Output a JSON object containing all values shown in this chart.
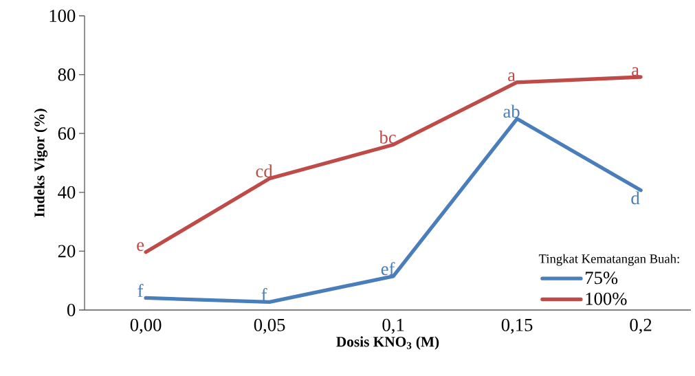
{
  "chart_data": {
    "type": "line",
    "xlabel": "Dosis KNO$_{3}$ (M)",
    "ylabel": "Indeks Vigor (%)",
    "legend_title": "Tingkat Kematangan Buah:",
    "categories": [
      "0,00",
      "0,05",
      "0,1",
      "0,15",
      "0,2"
    ],
    "series": [
      {
        "name": "75%",
        "color": "#4a7ebb",
        "values": [
          4.1,
          2.7,
          11.5,
          65.0,
          40.7
        ]
      },
      {
        "name": "100%",
        "color": "#be4b48",
        "values": [
          19.7,
          44.7,
          56.2,
          77.4,
          79.2
        ]
      }
    ],
    "ylim": [
      0,
      100
    ],
    "yticks": [
      0,
      20,
      40,
      60,
      80,
      100
    ],
    "grid": false,
    "legend": "bottom right",
    "marker": "none",
    "line_style": "solid",
    "annotations": [
      {
        "text": "f",
        "x": "0,00",
        "y": 4.1
      },
      {
        "text": "f",
        "x": "0,05",
        "y": 2.7
      },
      {
        "text": "ef",
        "x": "0,1",
        "y": 11.5
      },
      {
        "text": "ab",
        "x": "0,15",
        "y": 65.0
      },
      {
        "text": "d",
        "x": "0,2",
        "y": 40.7
      },
      {
        "text": "e",
        "x": "0,00",
        "y": 19.7
      },
      {
        "text": "cd",
        "x": "0,05",
        "y": 44.7
      },
      {
        "text": "bc",
        "x": "0,1",
        "y": 56.2
      },
      {
        "text": "a",
        "x": "0,15",
        "y": 77.4
      },
      {
        "text": "a",
        "x": "0,2",
        "y": 79.2
      }
    ]
  }
}
